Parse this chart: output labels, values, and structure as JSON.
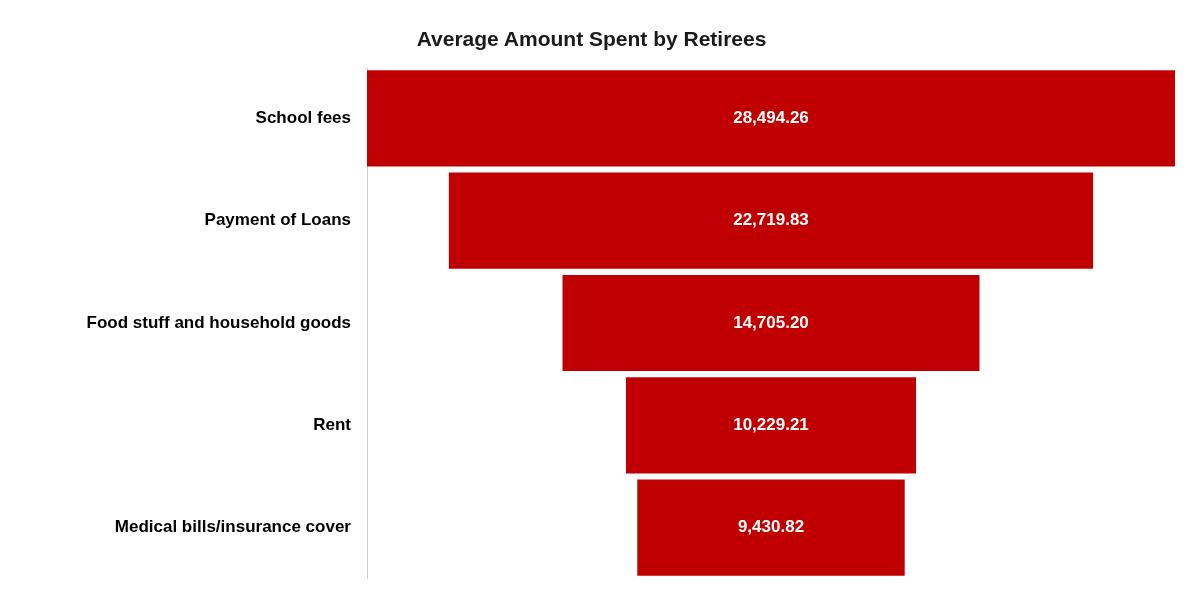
{
  "chart_data": {
    "type": "other",
    "title": "Average Amount Spent by Retirees",
    "categories": [
      "School fees",
      "Payment of Loans",
      "Food stuff and household goods",
      "Rent",
      "Medical bills/insurance cover"
    ],
    "values": [
      28494.26,
      22719.83,
      14705.2,
      10229.21,
      9430.82
    ],
    "value_labels": [
      "28,494.26",
      "22,719.83",
      "14,705.20",
      "10,229.21",
      "9,430.82"
    ],
    "color": "#c00000",
    "legend": false
  }
}
